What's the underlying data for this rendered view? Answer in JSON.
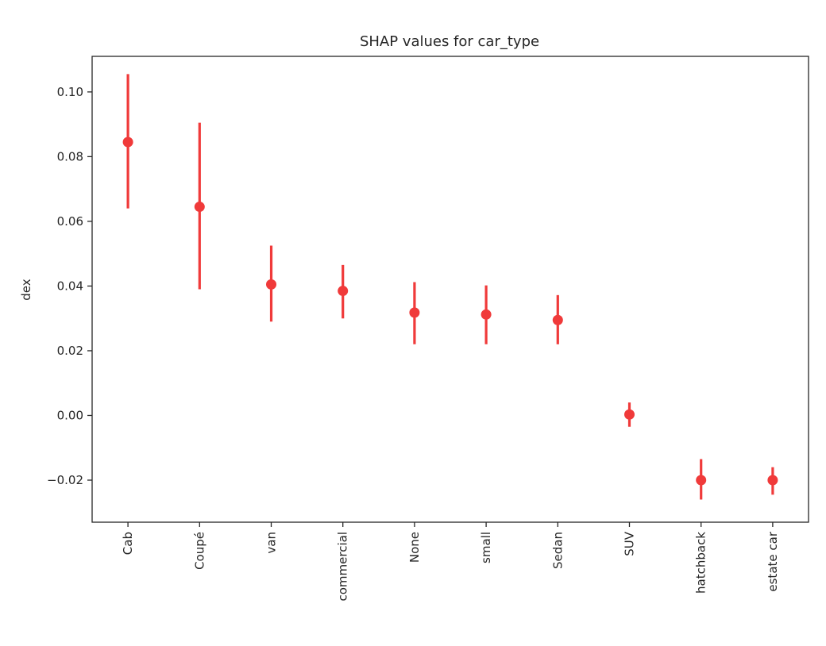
{
  "chart_data": {
    "type": "scatter",
    "title": "SHAP values for car_type",
    "xlabel": "",
    "ylabel": "dex",
    "ylim": [
      -0.033,
      0.111
    ],
    "yticks": [
      -0.02,
      0.0,
      0.02,
      0.04,
      0.06,
      0.08,
      0.1
    ],
    "ytick_labels": [
      "−0.02",
      "0.00",
      "0.02",
      "0.04",
      "0.06",
      "0.08",
      "0.10"
    ],
    "categories": [
      "Cab",
      "Coupé",
      "van",
      "commercial",
      "None",
      "small",
      "Sedan",
      "SUV",
      "hatchback",
      "estate car"
    ],
    "values": [
      0.0845,
      0.0645,
      0.0405,
      0.0385,
      0.0318,
      0.0312,
      0.0295,
      0.0003,
      -0.02,
      -0.02
    ],
    "error_low": [
      0.064,
      0.039,
      0.029,
      0.03,
      0.022,
      0.022,
      0.022,
      -0.0035,
      -0.026,
      -0.0245
    ],
    "error_high": [
      0.1055,
      0.0905,
      0.0525,
      0.0465,
      0.0412,
      0.0402,
      0.0372,
      0.004,
      -0.0135,
      -0.016
    ],
    "color": "#f03a3a",
    "grid": false
  }
}
